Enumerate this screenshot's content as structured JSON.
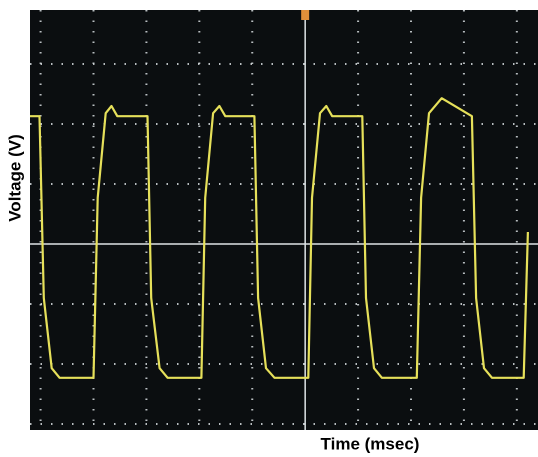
{
  "chart_data": {
    "type": "line",
    "xlabel": "Time (msec)",
    "ylabel": "Voltage (V)",
    "xlim": [
      -5.2,
      4.4
    ],
    "ylim": [
      -3.1,
      3.9
    ],
    "grid": true,
    "x": [
      -5.2,
      -5.02,
      -4.94,
      -4.79,
      -4.64,
      -4.0,
      -3.92,
      -3.77,
      -3.66,
      -3.55,
      -2.98,
      -2.91,
      -2.75,
      -2.6,
      -1.96,
      -1.89,
      -1.74,
      -1.62,
      -1.51,
      -0.96,
      -0.89,
      -0.74,
      -0.58,
      0.06,
      0.13,
      0.28,
      0.4,
      0.51,
      1.08,
      1.15,
      1.3,
      1.45,
      2.11,
      2.19,
      2.34,
      2.58,
      3.15,
      3.23,
      3.38,
      3.53,
      4.13,
      4.21
    ],
    "series": [
      {
        "color": "#e6e05a",
        "values": [
          2.13,
          2.13,
          -0.9,
          -2.07,
          -2.23,
          -2.23,
          0.77,
          2.18,
          2.3,
          2.13,
          2.13,
          -0.9,
          -2.07,
          -2.23,
          -2.23,
          0.77,
          2.18,
          2.3,
          2.13,
          2.13,
          -0.9,
          -2.07,
          -2.23,
          -2.23,
          0.77,
          2.18,
          2.3,
          2.13,
          2.13,
          -0.9,
          -2.07,
          -2.23,
          -2.23,
          0.77,
          2.18,
          2.43,
          2.13,
          -0.9,
          -2.07,
          -2.23,
          -2.23,
          0.2
        ]
      }
    ]
  }
}
